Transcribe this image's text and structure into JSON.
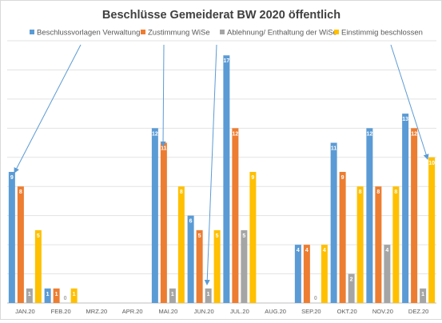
{
  "chart_data": {
    "type": "bar",
    "title": "Beschlüsse Gemeiderat BW 2020 öffentlich",
    "xlabel": "",
    "ylabel": "",
    "ylim": [
      0,
      18
    ],
    "grid": true,
    "legend": "top",
    "categories": [
      "JAN.20",
      "FEB.20",
      "MRZ.20",
      "APR.20",
      "MAI.20",
      "JUN.20",
      "JUL.20",
      "AUG.20",
      "SEP.20",
      "OKT.20",
      "NOV.20",
      "DEZ.20"
    ],
    "series": [
      {
        "name": "Beschlussvorlagen Verwaltung",
        "color": "#5b9bd5",
        "values": [
          9,
          1,
          null,
          null,
          12,
          6,
          17,
          null,
          4,
          11,
          12,
          13
        ]
      },
      {
        "name": "Zustimmung WiSe",
        "color": "#ed7d31",
        "values": [
          8,
          1,
          null,
          null,
          11,
          5,
          12,
          null,
          4,
          9,
          8,
          12
        ]
      },
      {
        "name": "Ablehnung/ Enthaltung der WiSe",
        "color": "#a5a5a5",
        "values": [
          1,
          0,
          null,
          null,
          1,
          1,
          5,
          null,
          0,
          2,
          4,
          1
        ]
      },
      {
        "name": "Einstimmig beschlossen",
        "color": "#ffc000",
        "values": [
          5,
          1,
          null,
          null,
          8,
          5,
          9,
          null,
          4,
          8,
          8,
          10
        ]
      }
    ]
  }
}
